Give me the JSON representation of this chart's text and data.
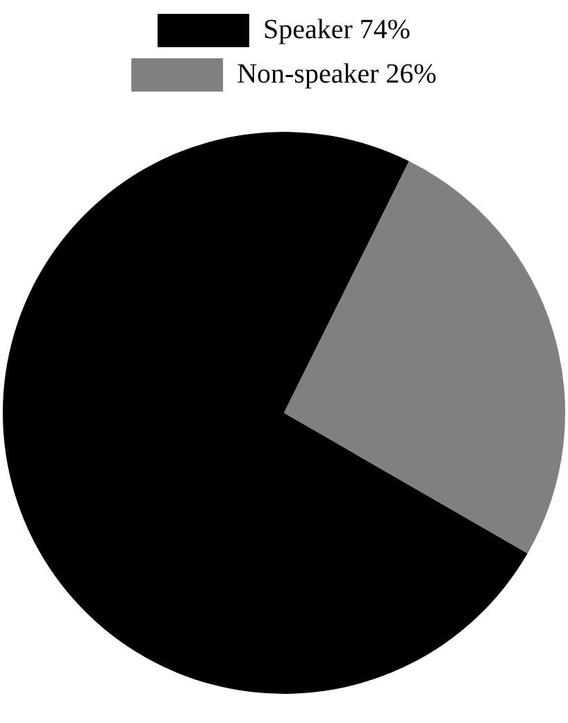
{
  "chart_data": {
    "type": "pie",
    "categories": [
      "Speaker 74%",
      "Non-speaker 26%"
    ],
    "values": [
      74,
      26
    ],
    "colors": [
      "#000000",
      "#808080"
    ],
    "legend": "top"
  }
}
